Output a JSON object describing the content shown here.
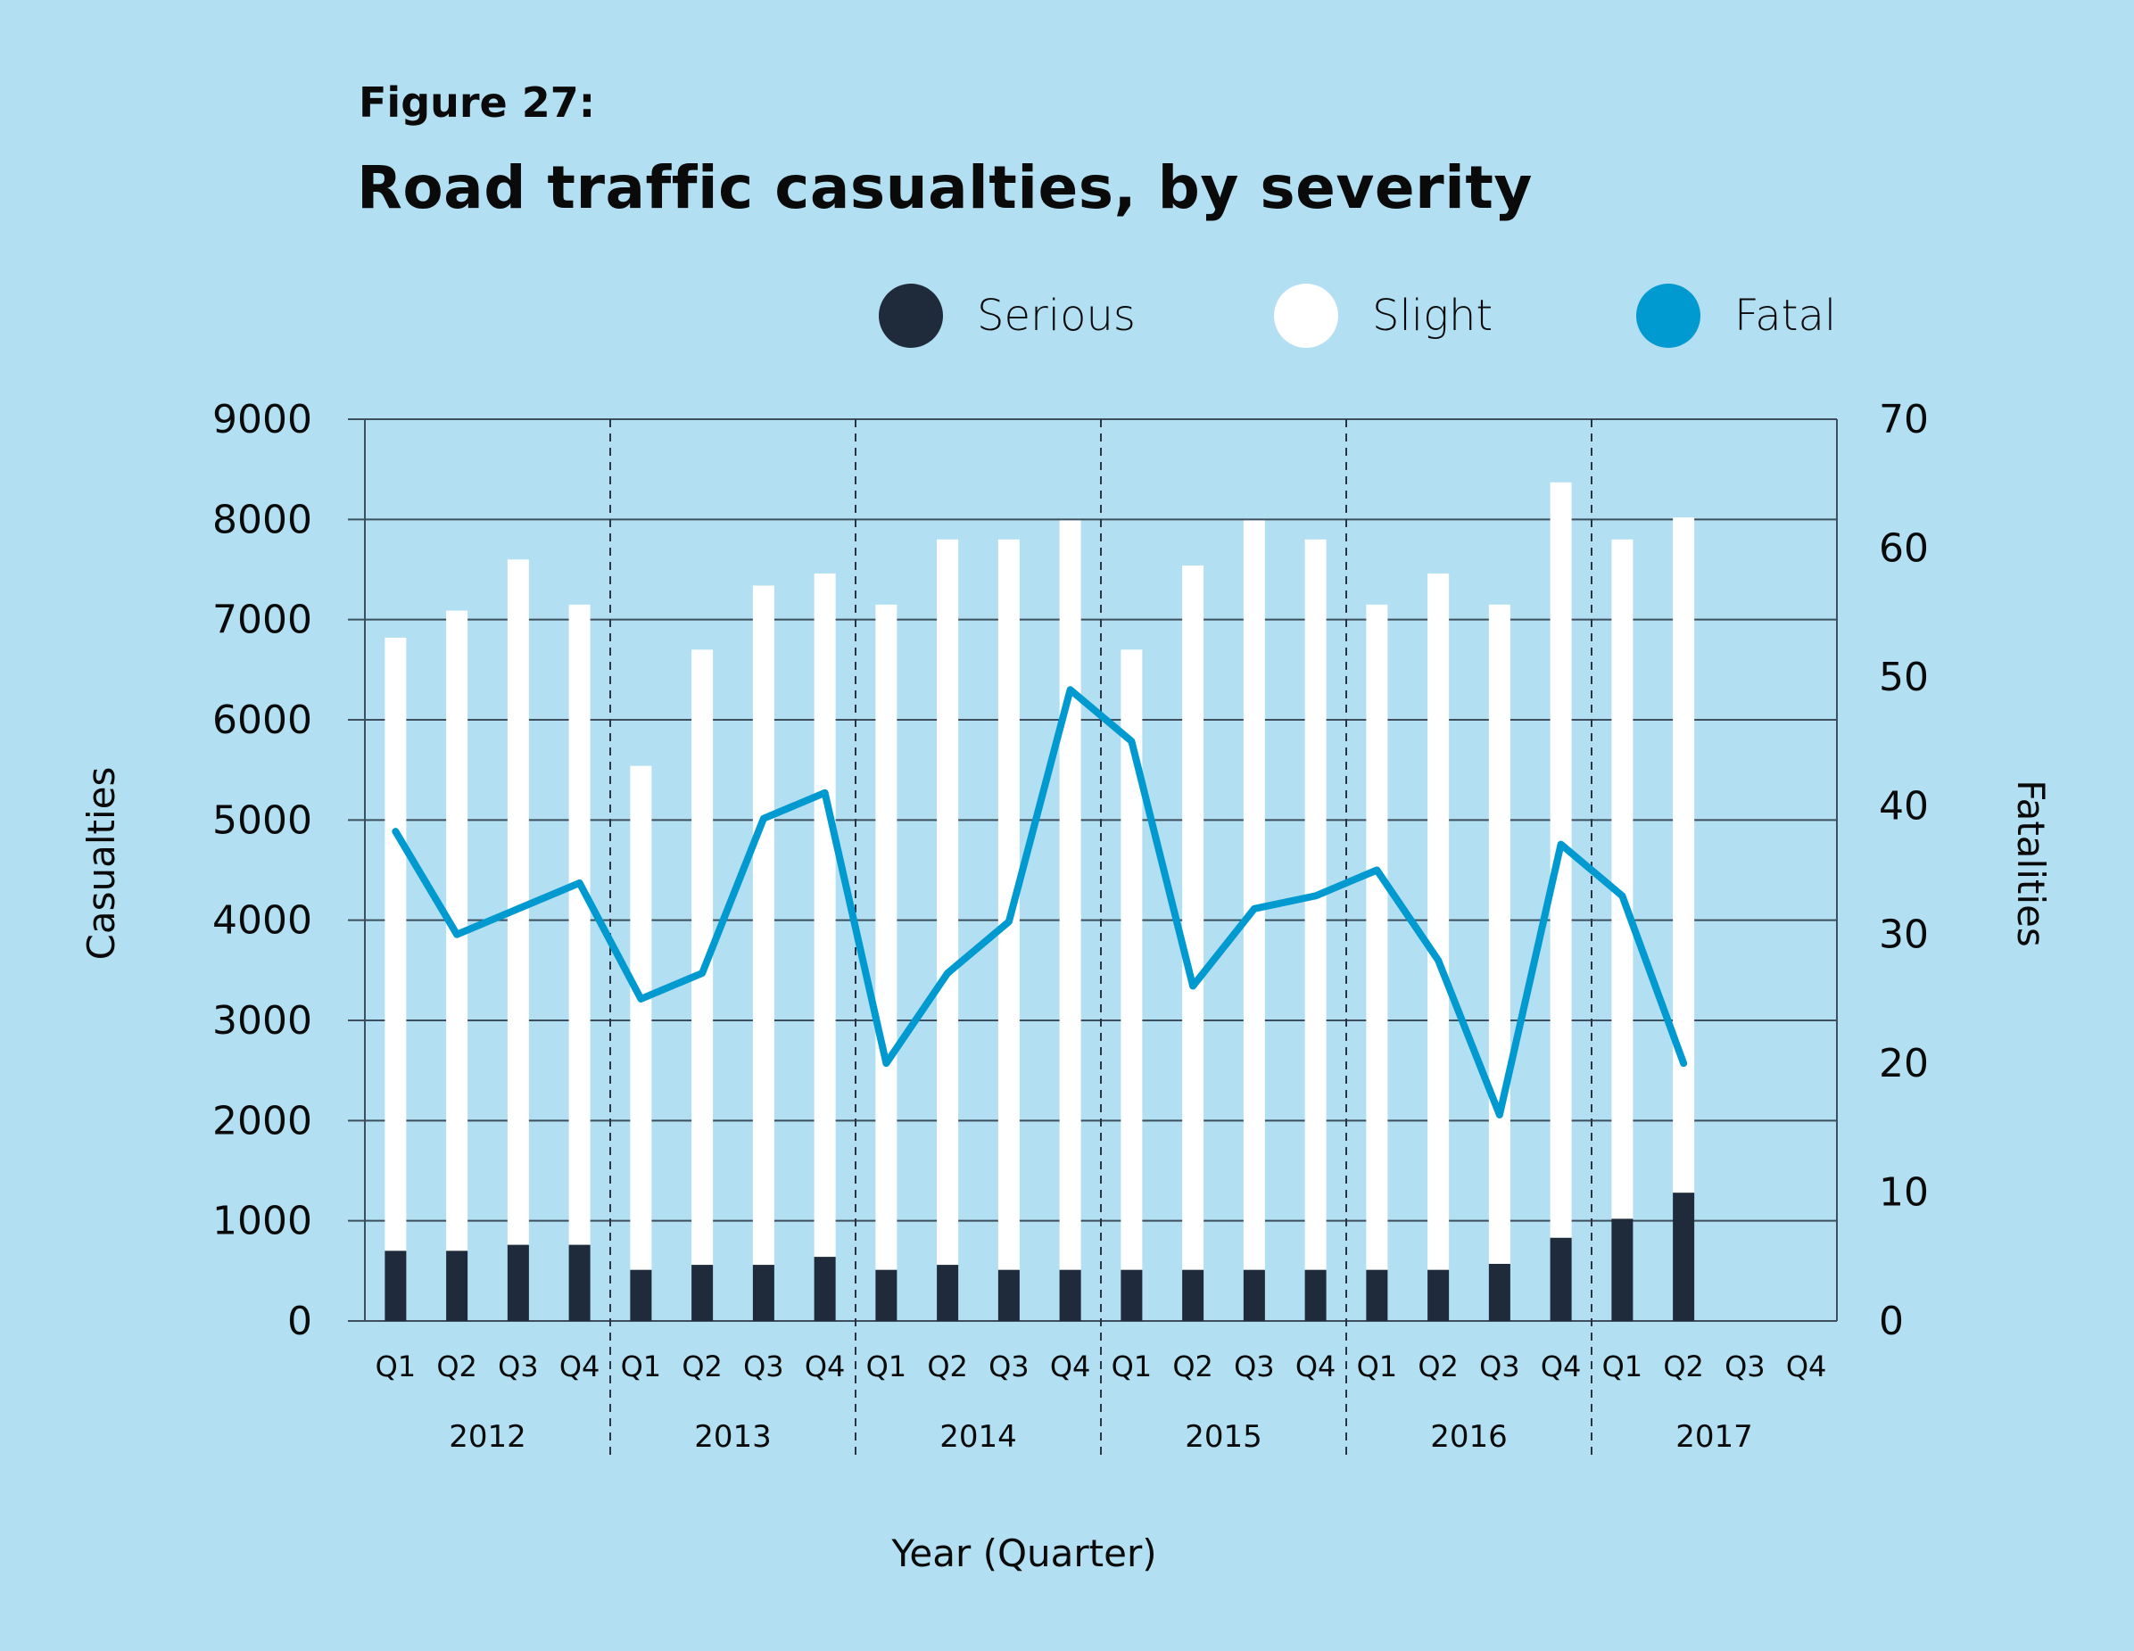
{
  "figure_label": "Figure 27:",
  "legend": [
    {
      "label": "Serious",
      "color": "#1f2a3a"
    },
    {
      "label": "Slight",
      "color": "#ffffff"
    },
    {
      "label": "Fatal",
      "color": "#0099d0"
    }
  ],
  "chart_data": {
    "type": "bar",
    "title": "Road traffic casualties, by severity",
    "xlabel": "Year (Quarter)",
    "ylabel": "Casualties",
    "y2label": "Fatalities",
    "ylim": [
      0,
      9000
    ],
    "y2lim": [
      0,
      70
    ],
    "yticks": [
      0,
      1000,
      2000,
      3000,
      4000,
      5000,
      6000,
      7000,
      8000,
      9000
    ],
    "y2ticks": [
      0,
      10,
      20,
      30,
      40,
      50,
      60,
      70
    ],
    "grid": true,
    "legend_position": "top-right",
    "years": [
      "2012",
      "2013",
      "2014",
      "2015",
      "2016",
      "2017"
    ],
    "quarters": [
      "Q1",
      "Q2",
      "Q3",
      "Q4"
    ],
    "categories": [
      "2012 Q1",
      "2012 Q2",
      "2012 Q3",
      "2012 Q4",
      "2013 Q1",
      "2013 Q2",
      "2013 Q3",
      "2013 Q4",
      "2014 Q1",
      "2014 Q2",
      "2014 Q3",
      "2014 Q4",
      "2015 Q1",
      "2015 Q2",
      "2015 Q3",
      "2015 Q4",
      "2016 Q1",
      "2016 Q2",
      "2016 Q3",
      "2016 Q4",
      "2017 Q1",
      "2017 Q2",
      "2017 Q3",
      "2017 Q4"
    ],
    "series": [
      {
        "name": "Serious",
        "type": "stacked-bar",
        "axis": "left",
        "color": "#1f2a3a",
        "values": [
          700,
          700,
          760,
          760,
          510,
          560,
          560,
          640,
          510,
          560,
          510,
          510,
          510,
          510,
          510,
          510,
          510,
          510,
          570,
          830,
          1020,
          1280,
          null,
          null
        ]
      },
      {
        "name": "Slight",
        "type": "stacked-bar",
        "axis": "left",
        "color": "#ffffff",
        "values": [
          6120,
          6390,
          6840,
          6390,
          5030,
          6140,
          6780,
          6820,
          6640,
          7240,
          7290,
          7480,
          6190,
          7030,
          7480,
          7290,
          6640,
          6950,
          6580,
          7540,
          6780,
          6740,
          null,
          null
        ]
      },
      {
        "name": "Fatal",
        "type": "line",
        "axis": "right",
        "color": "#0099d0",
        "values": [
          38,
          30,
          32,
          34,
          25,
          27,
          39,
          41,
          20,
          27,
          31,
          49,
          45,
          26,
          32,
          33,
          35,
          28,
          16,
          37,
          33,
          20,
          null,
          null
        ]
      }
    ]
  }
}
